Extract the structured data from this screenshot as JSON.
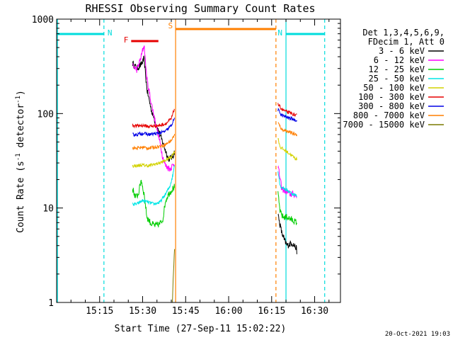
{
  "chart_data": {
    "type": "line",
    "title": "RHESSI Observing Summary Count Rates",
    "xlabel": "Start Time (27-Sep-11 15:02:22)",
    "ylabel_main": "Count Rate (s",
    "ylabel_sup1": "-1",
    "ylabel_mid": " detector",
    "ylabel_sup2": "-1",
    "ylabel_end": ")",
    "yscale": "log",
    "ylim": [
      1,
      1000
    ],
    "xlim_minutes": [
      0,
      99
    ],
    "x_ticks": [
      {
        "m": 15,
        "label": "15:15"
      },
      {
        "m": 30,
        "label": "15:30"
      },
      {
        "m": 45,
        "label": "15:45"
      },
      {
        "m": 60,
        "label": "16:00"
      },
      {
        "m": 75,
        "label": "16:15"
      },
      {
        "m": 90,
        "label": "16:30"
      }
    ],
    "y_ticks": [
      {
        "v": 1,
        "label": "1"
      },
      {
        "v": 10,
        "label": "10"
      },
      {
        "v": 100,
        "label": "100"
      },
      {
        "v": 1000,
        "label": "1000"
      }
    ],
    "legend_header1": "Det 1,3,4,5,6,9,",
    "legend_header2": "FDecim 1, Att 0",
    "timestamp": "20-Oct-2021 19:03",
    "flags": [
      {
        "label": "N",
        "color": "#00dcdc",
        "start": 0,
        "end": 16.5
      },
      {
        "label": "N",
        "color": "#00dcdc",
        "start": 80,
        "end": 93.5
      },
      {
        "label": "S",
        "color": "#ff7f00",
        "start": 41.5,
        "end": 76.5
      },
      {
        "label": "F",
        "color": "#e60000",
        "start": 26,
        "end": 35.5
      }
    ],
    "flag_boundaries": [
      {
        "m": 0.3,
        "color": "#00dcdc",
        "dash": false
      },
      {
        "m": 16.5,
        "color": "#00dcdc",
        "dash": true
      },
      {
        "m": 80,
        "color": "#00dcdc",
        "dash": false
      },
      {
        "m": 93.5,
        "color": "#00dcdc",
        "dash": true
      },
      {
        "m": 41.5,
        "color": "#ff7f00",
        "dash": false
      },
      {
        "m": 76.5,
        "color": "#ff7f00",
        "dash": true
      }
    ],
    "series": [
      {
        "name": "3 - 6 keV",
        "color": "#000000",
        "seg1": [
          [
            26.5,
            340
          ],
          [
            28,
            300
          ],
          [
            29.5,
            330
          ],
          [
            30.5,
            380
          ],
          [
            31.5,
            180
          ],
          [
            33,
            110
          ],
          [
            34.5,
            80
          ],
          [
            36,
            60
          ],
          [
            37.5,
            45
          ],
          [
            39,
            33
          ],
          [
            40.5,
            35
          ],
          [
            41.2,
            40
          ]
        ],
        "seg2": [
          [
            77.2,
            8.5
          ],
          [
            78.5,
            5.5
          ],
          [
            79.5,
            4.5
          ],
          [
            80.5,
            4.0
          ],
          [
            82,
            4.3
          ],
          [
            83.5,
            3.8
          ],
          [
            83.8,
            3.5
          ]
        ]
      },
      {
        "name": "6 - 12 keV",
        "color": "#ff00ff",
        "seg1": [
          [
            26.5,
            320
          ],
          [
            28,
            290
          ],
          [
            29.5,
            400
          ],
          [
            30.5,
            540
          ],
          [
            31.5,
            230
          ],
          [
            33,
            130
          ],
          [
            34.5,
            80
          ],
          [
            36,
            50
          ],
          [
            37,
            35
          ],
          [
            38,
            28
          ],
          [
            39.5,
            26
          ],
          [
            41.2,
            30
          ]
        ],
        "seg2": [
          [
            77.2,
            28
          ],
          [
            78.5,
            16
          ],
          [
            80,
            15
          ],
          [
            81.5,
            14
          ],
          [
            83,
            14
          ],
          [
            83.8,
            13
          ]
        ]
      },
      {
        "name": "12 - 25 keV",
        "color": "#00cd00",
        "seg1": [
          [
            26.5,
            16
          ],
          [
            27.5,
            13
          ],
          [
            28.5,
            14
          ],
          [
            29.5,
            20
          ],
          [
            30.5,
            14
          ],
          [
            31.5,
            8
          ],
          [
            33,
            6.8
          ],
          [
            34.5,
            6.5
          ],
          [
            36,
            6.8
          ],
          [
            37,
            7.5
          ],
          [
            38,
            12
          ],
          [
            39,
            14
          ],
          [
            40.5,
            16
          ],
          [
            41.2,
            17
          ]
        ],
        "seg2": [
          [
            77.2,
            14
          ],
          [
            78,
            9
          ],
          [
            79,
            8
          ],
          [
            80.5,
            8
          ],
          [
            82,
            7.5
          ],
          [
            83.8,
            7
          ]
        ]
      },
      {
        "name": "25 - 50 keV",
        "color": "#00e6e6",
        "seg1": [
          [
            26.5,
            11
          ],
          [
            28,
            11
          ],
          [
            30,
            12
          ],
          [
            32,
            11.5
          ],
          [
            34,
            11
          ],
          [
            36,
            11.5
          ],
          [
            38,
            14
          ],
          [
            39.5,
            17
          ],
          [
            40.5,
            22
          ],
          [
            41.2,
            30
          ]
        ],
        "seg2": [
          [
            77.2,
            25
          ],
          [
            78,
            17
          ],
          [
            79.5,
            16
          ],
          [
            81,
            15
          ],
          [
            82.5,
            14
          ],
          [
            83.8,
            13.5
          ]
        ]
      },
      {
        "name": "50 - 100 keV",
        "color": "#d2d200",
        "seg1": [
          [
            26.5,
            28
          ],
          [
            28,
            28
          ],
          [
            30,
            28.5
          ],
          [
            32,
            28
          ],
          [
            34,
            29
          ],
          [
            36,
            30
          ],
          [
            38,
            32
          ],
          [
            40,
            35
          ],
          [
            41.2,
            40
          ]
        ],
        "seg2": [
          [
            77.2,
            55
          ],
          [
            78,
            44
          ],
          [
            80,
            40
          ],
          [
            81.5,
            37
          ],
          [
            83,
            34
          ],
          [
            83.8,
            33
          ]
        ]
      },
      {
        "name": "100 - 300 keV",
        "color": "#e60000",
        "seg1": [
          [
            26.5,
            75
          ],
          [
            28,
            74
          ],
          [
            30,
            75
          ],
          [
            32,
            73
          ],
          [
            34,
            74
          ],
          [
            36,
            75
          ],
          [
            38,
            78
          ],
          [
            40,
            88
          ],
          [
            41.2,
            115
          ]
        ],
        "seg2": [
          [
            77.2,
            125
          ],
          [
            78.5,
            112
          ],
          [
            80,
            105
          ],
          [
            82,
            100
          ],
          [
            83.8,
            95
          ]
        ]
      },
      {
        "name": "300 - 800 keV",
        "color": "#0000e6",
        "seg1": [
          [
            26.5,
            60
          ],
          [
            28,
            60
          ],
          [
            30,
            62
          ],
          [
            32,
            60
          ],
          [
            34,
            61
          ],
          [
            36,
            62
          ],
          [
            38,
            65
          ],
          [
            40,
            75
          ],
          [
            41.2,
            90
          ]
        ],
        "seg2": [
          [
            77.2,
            110
          ],
          [
            78.5,
            96
          ],
          [
            80,
            92
          ],
          [
            82,
            88
          ],
          [
            83.8,
            85
          ]
        ]
      },
      {
        "name": "800 - 7000 keV",
        "color": "#ff7f00",
        "seg1": [
          [
            26.5,
            43
          ],
          [
            28,
            43
          ],
          [
            30,
            44
          ],
          [
            32,
            43
          ],
          [
            34,
            44
          ],
          [
            36,
            45
          ],
          [
            38,
            47
          ],
          [
            40,
            52
          ],
          [
            41.2,
            60
          ]
        ],
        "seg2": [
          [
            77.2,
            80
          ],
          [
            78.5,
            68
          ],
          [
            80,
            66
          ],
          [
            82,
            62
          ],
          [
            83.8,
            60
          ]
        ]
      },
      {
        "name": "7000 - 15000 keV",
        "color": "#7a7a00",
        "seg1": [
          [
            40.4,
            1.0
          ],
          [
            40.6,
            1.6
          ],
          [
            40.8,
            2.2
          ],
          [
            41.0,
            3.2
          ],
          [
            41.2,
            3.8
          ]
        ],
        "seg2": []
      }
    ]
  }
}
